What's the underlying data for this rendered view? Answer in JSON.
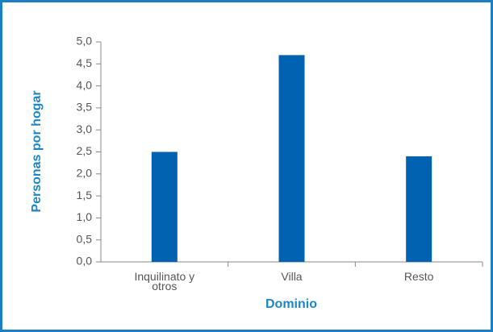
{
  "chart_data": {
    "type": "bar",
    "categories": [
      "Inquilinato y otros",
      "Villa",
      "Resto"
    ],
    "values": [
      2.5,
      4.7,
      2.4
    ],
    "color": "#0062b1",
    "xlabel": "Dominio",
    "ylabel": "Personas por hogar",
    "ylim": [
      0,
      5
    ],
    "yticks": [
      {
        "value": 0,
        "label": "0,0"
      },
      {
        "value": 0.5,
        "label": "0,5"
      },
      {
        "value": 1,
        "label": "1,0"
      },
      {
        "value": 1.5,
        "label": "1,5"
      },
      {
        "value": 2,
        "label": "2,0"
      },
      {
        "value": 2.5,
        "label": "2,5"
      },
      {
        "value": 3,
        "label": "3,0"
      },
      {
        "value": 3.5,
        "label": "3,5"
      },
      {
        "value": 4,
        "label": "4,0"
      },
      {
        "value": 4.5,
        "label": "4,5"
      },
      {
        "value": 5,
        "label": "5,0"
      }
    ],
    "grid": false
  }
}
